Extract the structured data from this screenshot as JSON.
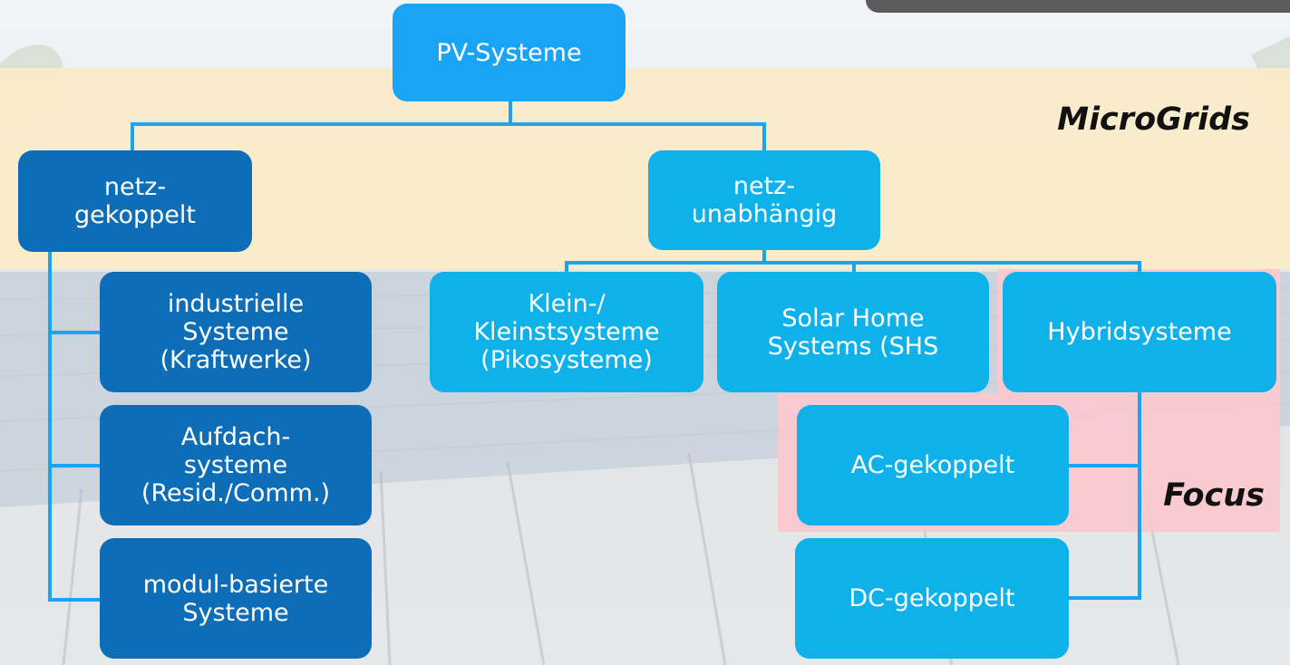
{
  "root": {
    "label": "PV-Systeme"
  },
  "regions": {
    "microgrids": "MicroGrids",
    "focus": "Focus"
  },
  "nodes": {
    "grid_connected": "netz-\ngekoppelt",
    "off_grid": "netz-\nunabhängig",
    "industrial": "industrielle\nSysteme\n(Kraftwerke)",
    "rooftop": "Aufdach-\nsysteme\n(Resid./Comm.)",
    "module_based": "modul-basierte\nSysteme",
    "small": "Klein-/\nKleinstsysteme\n(Pikosysteme)",
    "shs": "Solar Home\nSystems (SHS",
    "hybrid": "Hybridsysteme",
    "ac_coupled": "AC-gekoppelt",
    "dc_coupled": "DC-gekoppelt"
  },
  "colors": {
    "root": "#1aa4f5",
    "dark_node": "#0e6db7",
    "light_node": "#0fb1ea",
    "microgrids_region": "#faecc8",
    "focus_region": "#fac8cf",
    "connector": "#1aa4f5"
  }
}
